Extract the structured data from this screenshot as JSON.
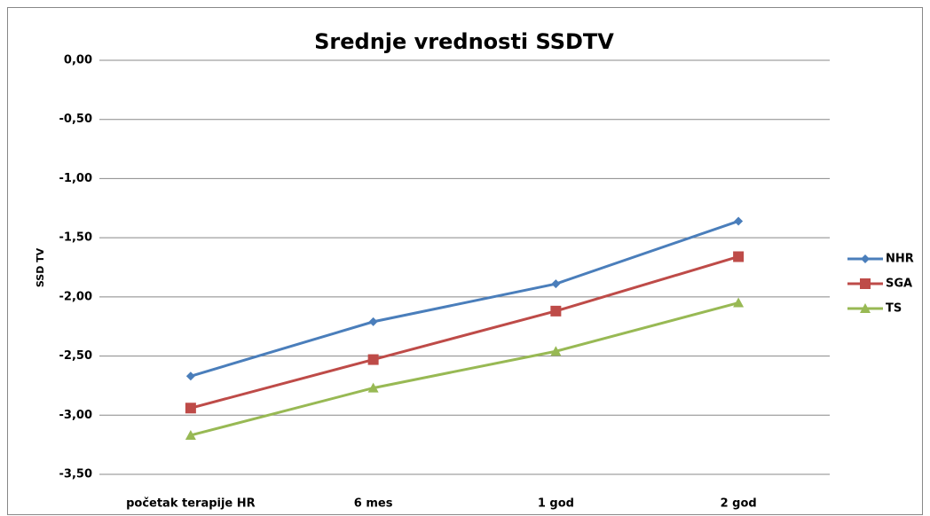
{
  "chart_data": {
    "type": "line",
    "title": "Srednje vrednosti SSDTV",
    "y_label": "SSD TV",
    "categories": [
      "početak terapije HR",
      "6 mes",
      "1 god",
      "2 god"
    ],
    "series": [
      {
        "name": "NHR",
        "color": "#4a7ebb",
        "marker": "diamond",
        "values": [
          -2.67,
          -2.21,
          -1.89,
          -1.36
        ]
      },
      {
        "name": "SGA",
        "color": "#be4b48",
        "marker": "square",
        "values": [
          -2.94,
          -2.53,
          -2.12,
          -1.66
        ]
      },
      {
        "name": "TS",
        "color": "#98b954",
        "marker": "triangle",
        "values": [
          -3.17,
          -2.77,
          -2.46,
          -2.05
        ]
      }
    ],
    "ylim": [
      -3.5,
      0
    ],
    "yticks": [
      {
        "value": 0,
        "label": "0,00"
      },
      {
        "value": -0.5,
        "label": "-0,50"
      },
      {
        "value": -1,
        "label": "-1,00"
      },
      {
        "value": -1.5,
        "label": "-1,50"
      },
      {
        "value": -2,
        "label": "-2,00"
      },
      {
        "value": -2.5,
        "label": "-2,50"
      },
      {
        "value": -3,
        "label": "-3,00"
      },
      {
        "value": -3.5,
        "label": "-3,50"
      }
    ],
    "grid": true,
    "legend": "right"
  }
}
